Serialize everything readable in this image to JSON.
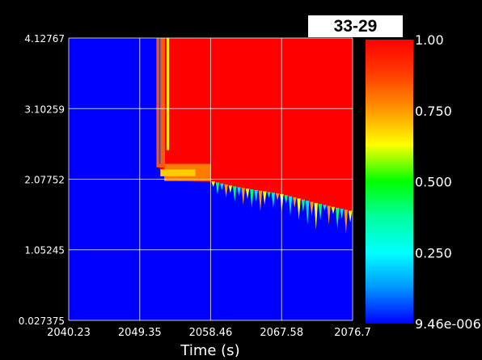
{
  "panel_label": "33-29",
  "chart_data": {
    "type": "heatmap",
    "title": "",
    "xlabel": "Time (s)",
    "ylabel": "",
    "xlim": [
      2040.23,
      2076.7
    ],
    "ylim": [
      0.027375,
      4.12767
    ],
    "x_ticks": [
      "2040.23",
      "2049.35",
      "2058.46",
      "2067.58",
      "2076.7"
    ],
    "x_tick_values": [
      2040.23,
      2049.35,
      2058.46,
      2067.58,
      2076.7
    ],
    "y_ticks": [
      "0.027375",
      "1.05245",
      "2.07752",
      "3.10259",
      "4.12767"
    ],
    "y_tick_values": [
      0.027375,
      1.05245,
      2.07752,
      3.10259,
      4.12767
    ],
    "grid": true,
    "colorbar": {
      "min": 9.46e-06,
      "max": 1.0,
      "tick_labels": [
        "1.00",
        "0.750",
        "0.500",
        "0.250",
        "9.46e-006"
      ],
      "tick_values": [
        1.0,
        0.75,
        0.5,
        0.25,
        9.46e-06
      ],
      "colormap": "rainbow (blue → cyan → green → yellow → red)"
    },
    "background_value": 9.46e-06,
    "saturated_region": {
      "description": "value ≈ 1.00 above a boundary that descends with time",
      "boundary": {
        "x": [
          2051.5,
          2052.5,
          2054.5,
          2058.46,
          2062,
          2067.58,
          2072,
          2076.7
        ],
        "y": [
          2.3,
          2.15,
          2.05,
          2.04,
          1.95,
          1.85,
          1.72,
          1.6
        ]
      }
    },
    "vertical_streak": {
      "x": [
        2051.5,
        2052.6
      ],
      "y_max": 4.12767
    }
  },
  "colors": {
    "background": "#000000",
    "low": "#0000ff",
    "high": "#ff0000",
    "grid": "#ffffff"
  }
}
